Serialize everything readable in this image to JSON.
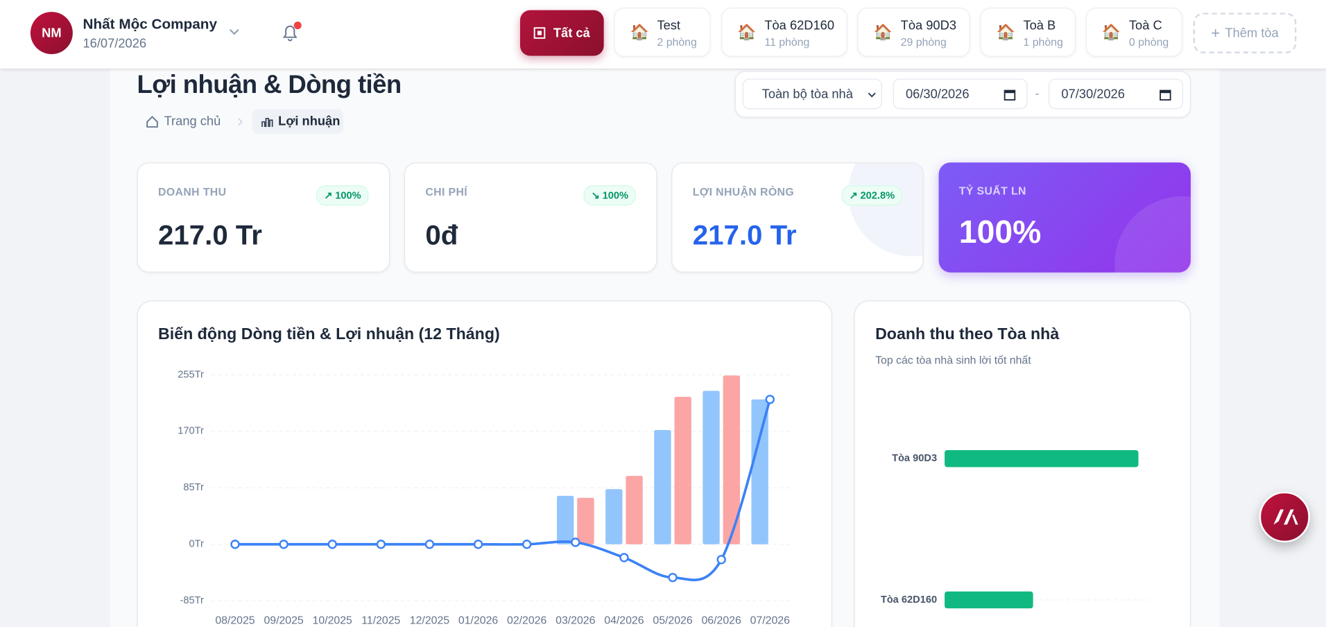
{
  "header": {
    "avatar": "NM",
    "company": "Nhất Mộc Company",
    "date": "16/07/2026"
  },
  "tabs": [
    {
      "label": "Tất cả"
    },
    {
      "label": "Test",
      "sub": "2 phòng"
    },
    {
      "label": "Tòa 62D160",
      "sub": "11 phòng"
    },
    {
      "label": "Tòa 90D3",
      "sub": "29 phòng"
    },
    {
      "label": "Toà B",
      "sub": "1 phòng"
    },
    {
      "label": "Toà C",
      "sub": "0 phòng"
    },
    {
      "label": "Thêm tòa"
    }
  ],
  "page": {
    "title": "Lợi nhuận & Dòng tiền",
    "breadcrumb": [
      "Trang chủ",
      "Lợi nhuận"
    ]
  },
  "filters": {
    "building": "Toàn bộ tòa nhà",
    "from": "06/30/2026",
    "separator": "-",
    "to": "07/30/2026"
  },
  "stats": [
    {
      "label": "DOANH THU",
      "badge": "100%",
      "value": "217.0 Tr"
    },
    {
      "label": "CHI PHÍ",
      "badge": "100%",
      "value": "0đ"
    },
    {
      "label": "LỢI NHUẬN RÒNG",
      "badge": "202.8%",
      "value": "217.0 Tr"
    },
    {
      "label": "TỶ SUẤT LN",
      "value": "100%"
    }
  ],
  "cashflow_chart": {
    "type": "bar",
    "title": "Biến động Dòng tiền & Lợi nhuận (12 Tháng)",
    "categories": [
      "08/2025",
      "09/2025",
      "10/2025",
      "11/2025",
      "12/2025",
      "01/2026",
      "02/2026",
      "03/2026",
      "04/2026",
      "05/2026",
      "06/2026",
      "07/2026"
    ],
    "series": [
      {
        "type": "bar",
        "color": "#93c5fd",
        "values": [
          0,
          0,
          0,
          0,
          0,
          0,
          0,
          73,
          83,
          172,
          231,
          218
        ]
      },
      {
        "type": "bar",
        "color": "#fca5a5",
        "values": [
          0,
          0,
          0,
          0,
          0,
          0,
          0,
          70,
          103,
          222,
          254,
          0
        ]
      },
      {
        "type": "line",
        "color": "#3b82f6",
        "values": [
          0,
          0,
          0,
          0,
          0,
          0,
          0,
          3,
          -20,
          -50,
          -23,
          218
        ]
      }
    ],
    "ylim": [
      -85,
      255
    ],
    "yticks": [
      {
        "value": 255,
        "label": "255Tr"
      },
      {
        "value": 170,
        "label": "170Tr"
      },
      {
        "value": 85,
        "label": "85Tr"
      },
      {
        "value": 0,
        "label": "0Tr"
      },
      {
        "value": -85,
        "label": "-85Tr"
      }
    ],
    "grid": true
  },
  "building_chart": {
    "type": "bar",
    "orientation": "horizontal",
    "title": "Doanh thu theo Tòa nhà",
    "subtitle": "Top các tòa nhà sinh lời tốt nhất",
    "categories": [
      "Tòa 90D3",
      "Tòa 62D160"
    ],
    "values": [
      149,
      68
    ],
    "color": "#10b981",
    "xlim": [
      0,
      158
    ]
  }
}
